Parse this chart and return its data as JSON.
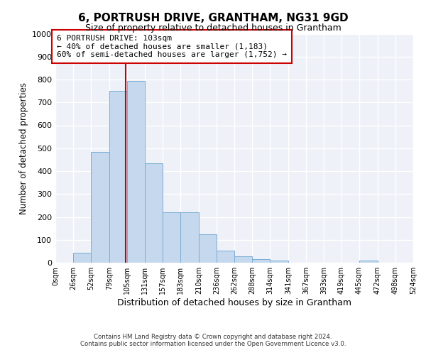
{
  "title": "6, PORTRUSH DRIVE, GRANTHAM, NG31 9GD",
  "subtitle": "Size of property relative to detached houses in Grantham",
  "xlabel": "Distribution of detached houses by size in Grantham",
  "ylabel": "Number of detached properties",
  "bar_color": "#c5d8ee",
  "bar_edge_color": "#7aadd4",
  "plot_bg_color": "#eef2f8",
  "fig_bg_color": "#ffffff",
  "grid_color": "#ffffff",
  "vline_x": 103,
  "vline_color": "#cc0000",
  "annotation_text": "6 PORTRUSH DRIVE: 103sqm\n← 40% of detached houses are smaller (1,183)\n60% of semi-detached houses are larger (1,752) →",
  "annotation_box_color": "#cc0000",
  "footer_line1": "Contains HM Land Registry data © Crown copyright and database right 2024.",
  "footer_line2": "Contains public sector information licensed under the Open Government Licence v3.0.",
  "bin_edges": [
    0,
    26,
    52,
    79,
    105,
    131,
    157,
    183,
    210,
    236,
    262,
    288,
    314,
    341,
    367,
    393,
    419,
    445,
    472,
    498,
    524
  ],
  "bar_heights": [
    0,
    42,
    485,
    750,
    795,
    435,
    220,
    220,
    125,
    52,
    28,
    15,
    8,
    0,
    0,
    0,
    0,
    8,
    0,
    0
  ],
  "ylim_max": 1000,
  "yticks": [
    0,
    100,
    200,
    300,
    400,
    500,
    600,
    700,
    800,
    900,
    1000
  ]
}
